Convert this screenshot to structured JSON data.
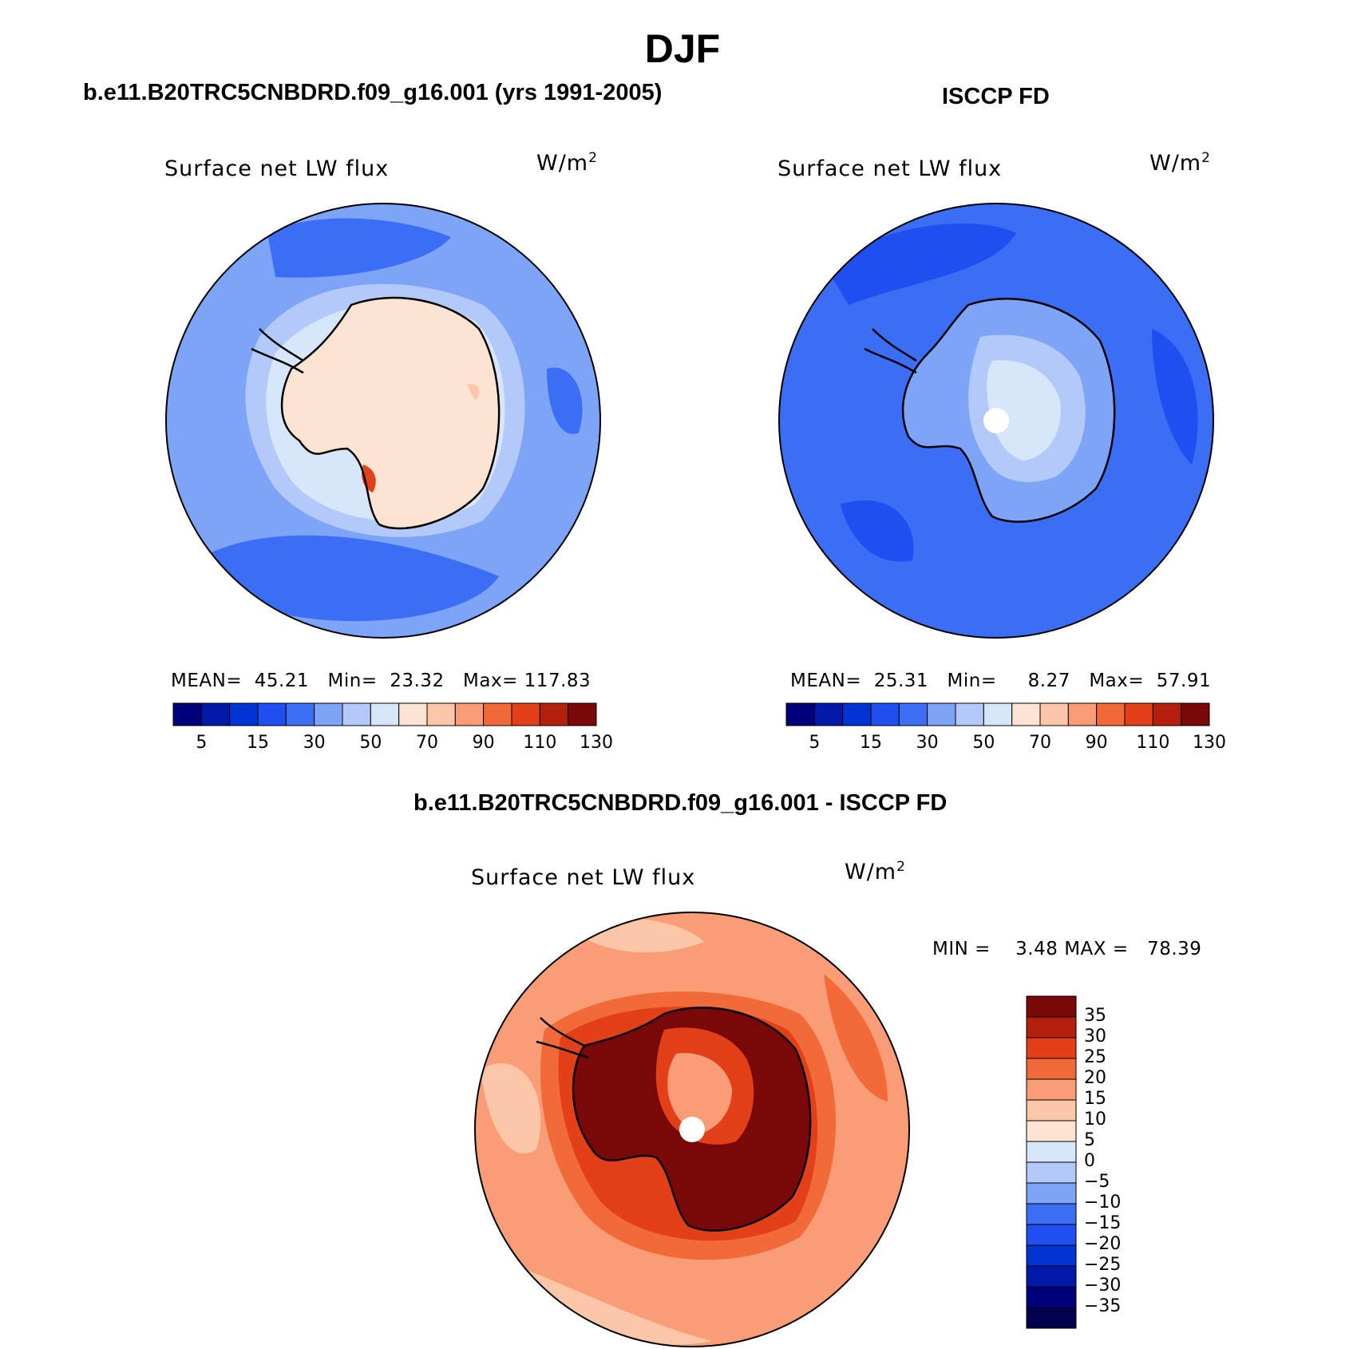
{
  "page": {
    "title": "DJF"
  },
  "panels": [
    {
      "id": "model",
      "header": "b.e11.B20TRC5CNBDRD.f09_g16.001 (yrs 1991-2005)",
      "variable": "Surface net LW flux",
      "units_base": "W/m",
      "units_exp": "2",
      "stats": {
        "mean_label": "MEAN=",
        "mean": "45.21",
        "min_label": "Min=",
        "min": "23.32",
        "max_label": "Max=",
        "max": "117.83"
      },
      "colorbar_ticks": [
        "5",
        "15",
        "30",
        "50",
        "70",
        "90",
        "110",
        "130"
      ]
    },
    {
      "id": "obs",
      "header": "ISCCP FD",
      "variable": "Surface net LW flux",
      "units_base": "W/m",
      "units_exp": "2",
      "stats": {
        "mean_label": "MEAN=",
        "mean": "25.31",
        "min_label": "Min=",
        "min": "8.27",
        "max_label": "Max=",
        "max": "57.91"
      },
      "colorbar_ticks": [
        "5",
        "15",
        "30",
        "50",
        "70",
        "90",
        "110",
        "130"
      ]
    },
    {
      "id": "diff",
      "header": "b.e11.B20TRC5CNBDRD.f09_g16.001 - ISCCP FD",
      "variable": "Surface net LW flux",
      "units_base": "W/m",
      "units_exp": "2",
      "stats": {
        "min_label": "MIN =",
        "min": "3.48",
        "max_label": "MAX =",
        "max": "78.39"
      },
      "colorbar_ticks": [
        "35",
        "30",
        "25",
        "20",
        "15",
        "10",
        "5",
        "0",
        "−5",
        "−10",
        "−15",
        "−20",
        "−25",
        "−30",
        "−35"
      ]
    }
  ],
  "palette": [
    "#00007a",
    "#0019a8",
    "#0035d4",
    "#1f4ff0",
    "#3b6ef5",
    "#7ea4f7",
    "#b3c9f9",
    "#d7e6fa",
    "#fde4d2",
    "#fcc6a9",
    "#f89d75",
    "#f36a3a",
    "#e3401a",
    "#b41f0c",
    "#7a0808"
  ],
  "map_palette": {
    "model": {
      "ocean": "#7ea4f7",
      "ocean_dark": "#3b6ef5",
      "shelf": "#b3c9f9",
      "coast": "#d7e6fa",
      "ice": "#fde4d2",
      "ice_warm": "#fcc6a9",
      "hot": "#e3401a"
    },
    "obs": {
      "ocean": "#3b6ef5",
      "ocean_dark": "#1f4ff0",
      "shelf": "#7ea4f7",
      "plateau": "#b3c9f9",
      "core": "#d7e6fa"
    },
    "diff": {
      "ocean": "#f89d75",
      "ocean_light": "#fcc6a9",
      "pale": "#fde4d2",
      "mid": "#f36a3a",
      "warm": "#e3401a",
      "hot": "#b41f0c",
      "hottest": "#7a0808"
    }
  },
  "icons": {
    "coastline": "antarctica-coastline-icon",
    "pole": "south-pole-marker-icon"
  }
}
